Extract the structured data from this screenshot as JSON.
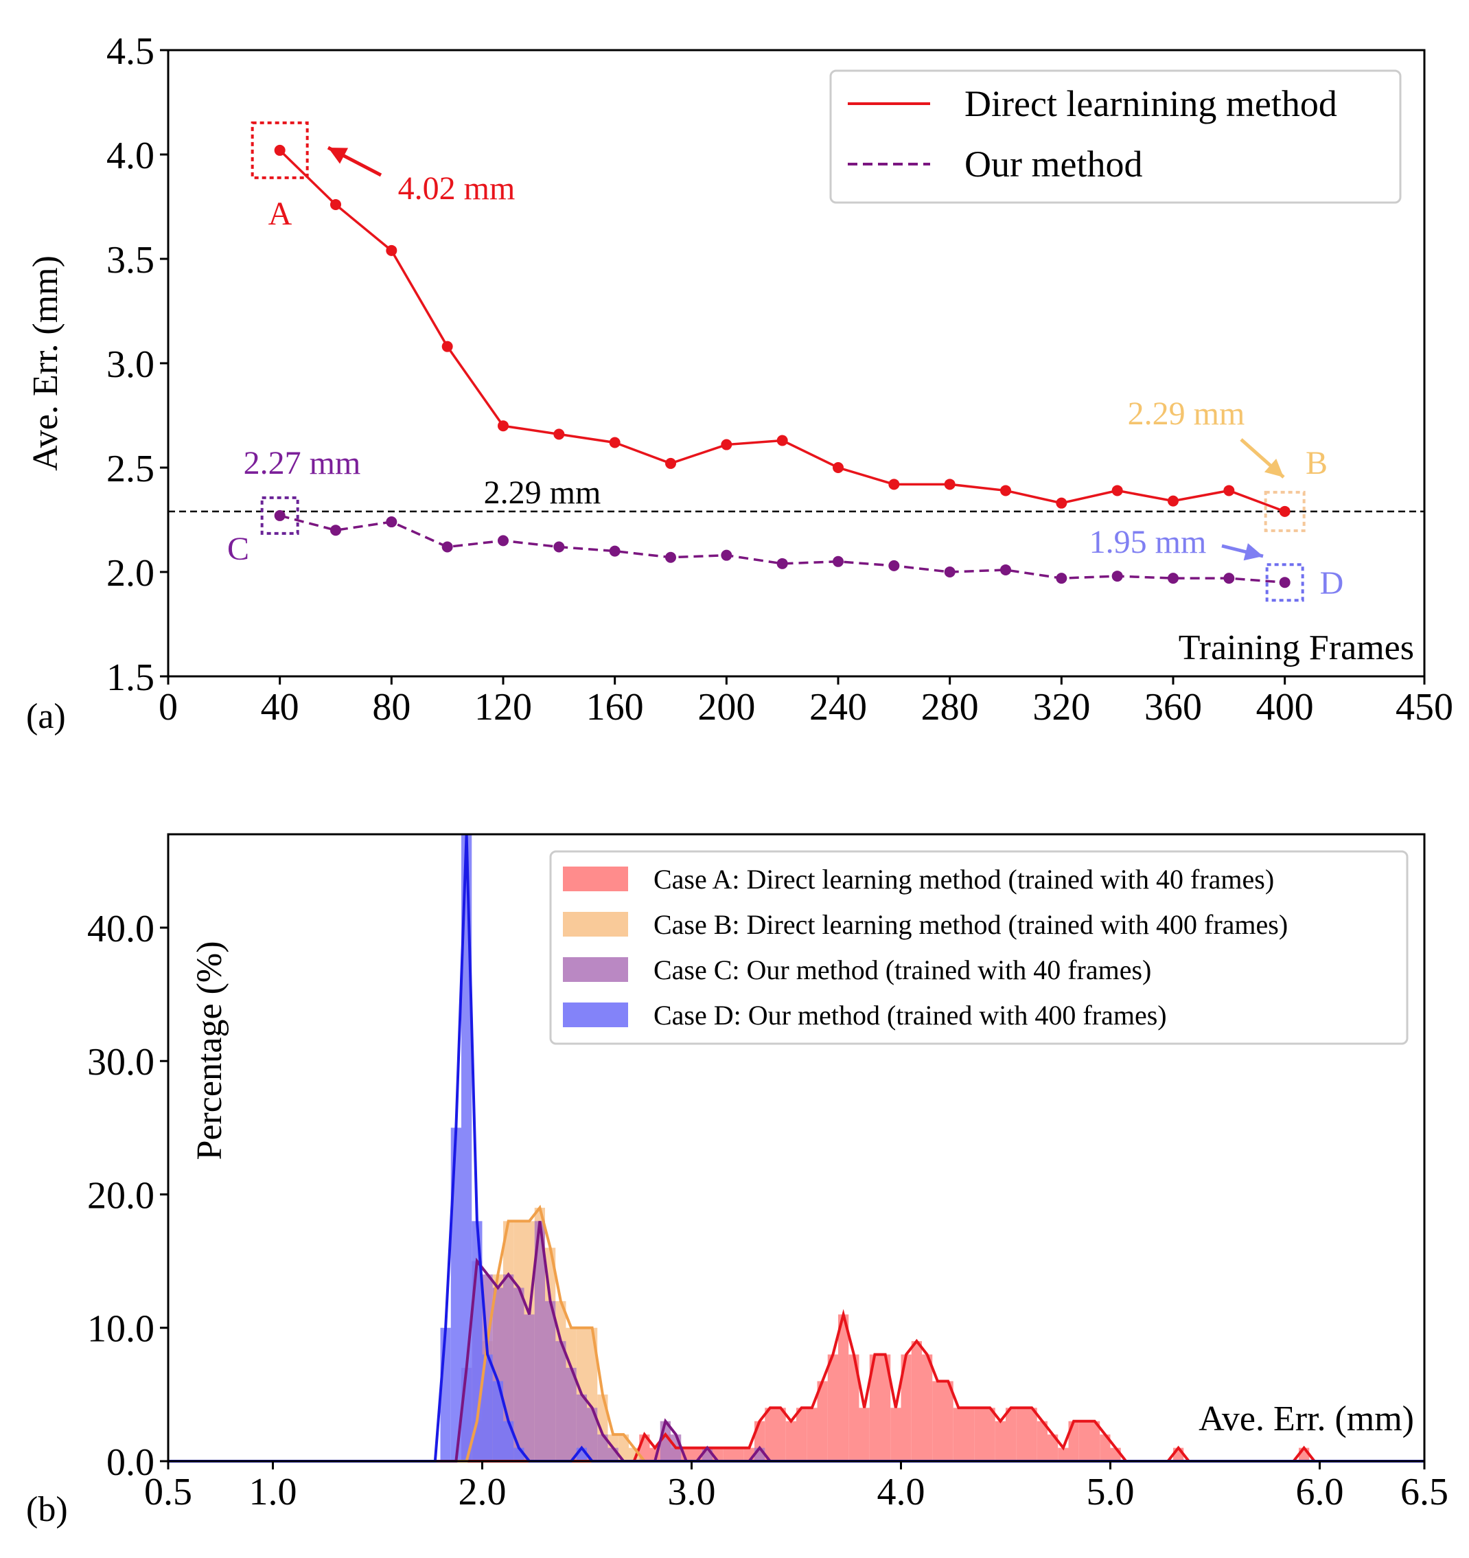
{
  "chart_data": [
    {
      "panel": "(a)",
      "type": "line",
      "title": "",
      "xlabel": "Training Frames",
      "ylabel": "Ave. Err. (mm)",
      "xlim": [
        0,
        450
      ],
      "ylim": [
        1.5,
        4.5
      ],
      "xticks": [
        "0",
        "40",
        "80",
        "120",
        "160",
        "200",
        "240",
        "280",
        "320",
        "360",
        "400",
        "450"
      ],
      "yticks": [
        "1.5",
        "2.0",
        "2.5",
        "3.0",
        "3.5",
        "4.0",
        "4.5"
      ],
      "grid": false,
      "legend_position": "top-right",
      "x": [
        40,
        60,
        80,
        100,
        120,
        140,
        160,
        180,
        200,
        220,
        240,
        260,
        280,
        300,
        320,
        340,
        360,
        380,
        400
      ],
      "series": [
        {
          "name": "Direct learnining method",
          "color": "#e8141b",
          "style": "solid",
          "values": [
            4.02,
            3.76,
            3.54,
            3.08,
            2.7,
            2.66,
            2.62,
            2.52,
            2.61,
            2.63,
            2.5,
            2.42,
            2.42,
            2.39,
            2.33,
            2.39,
            2.34,
            2.39,
            2.29
          ]
        },
        {
          "name": "Our method",
          "color": "#7b1680",
          "style": "dashed",
          "values": [
            2.27,
            2.2,
            2.24,
            2.12,
            2.15,
            2.12,
            2.1,
            2.07,
            2.08,
            2.04,
            2.05,
            2.03,
            2.0,
            2.01,
            1.97,
            1.98,
            1.97,
            1.97,
            1.95
          ]
        }
      ],
      "reference_line": {
        "y": 2.29,
        "label": "2.29 mm",
        "color": "#000000"
      },
      "annotations": [
        {
          "letter": "A",
          "x": 40,
          "y": 4.02,
          "value_label": "4.02 mm",
          "color": "#e8141b",
          "box_color": "#e8141b",
          "arrow": true
        },
        {
          "letter": "B",
          "x": 400,
          "y": 2.29,
          "value_label": "2.29 mm",
          "color": "#f5c46e",
          "box_color": "#f5c89a",
          "arrow": true
        },
        {
          "letter": "C",
          "x": 40,
          "y": 2.27,
          "value_label": "2.27 mm",
          "color": "#7b1f99",
          "box_color": "#6a2396",
          "arrow": false
        },
        {
          "letter": "D",
          "x": 400,
          "y": 1.95,
          "value_label": "1.95 mm",
          "color": "#7f7ff2",
          "box_color": "#6f6fef",
          "arrow": true
        }
      ]
    },
    {
      "panel": "(b)",
      "type": "histogram",
      "title": "",
      "xlabel": "Ave. Err. (mm)",
      "ylabel": "Percentage (%)",
      "xlim": [
        0.5,
        6.5
      ],
      "ylim": [
        0,
        47
      ],
      "xticks": [
        "0.5",
        "1.0",
        "2.0",
        "3.0",
        "4.0",
        "5.0",
        "6.0",
        "6.5"
      ],
      "yticks": [
        "0.0",
        "10.0",
        "20.0",
        "30.0",
        "40.0"
      ],
      "grid": false,
      "legend_position": "top-right",
      "bin_width": 0.05,
      "series": [
        {
          "name": "Case A: Direct learning method (trained with 40 frames)",
          "color": "#ff7f7f",
          "line_color": "#e8141b",
          "bins": [
            [
              2.75,
              2.8,
              2
            ],
            [
              2.8,
              2.85,
              1
            ],
            [
              2.85,
              2.9,
              2
            ],
            [
              2.9,
              2.95,
              1
            ],
            [
              2.95,
              3.0,
              1
            ],
            [
              3.0,
              3.05,
              1
            ],
            [
              3.05,
              3.1,
              1
            ],
            [
              3.1,
              3.15,
              1
            ],
            [
              3.15,
              3.2,
              1
            ],
            [
              3.2,
              3.25,
              1
            ],
            [
              3.25,
              3.3,
              1
            ],
            [
              3.3,
              3.35,
              3
            ],
            [
              3.35,
              3.4,
              4
            ],
            [
              3.4,
              3.45,
              4
            ],
            [
              3.45,
              3.5,
              3
            ],
            [
              3.5,
              3.55,
              4
            ],
            [
              3.55,
              3.6,
              4
            ],
            [
              3.6,
              3.65,
              6
            ],
            [
              3.65,
              3.7,
              8
            ],
            [
              3.7,
              3.75,
              11
            ],
            [
              3.75,
              3.8,
              8
            ],
            [
              3.8,
              3.85,
              4
            ],
            [
              3.85,
              3.9,
              8
            ],
            [
              3.9,
              3.95,
              8
            ],
            [
              3.95,
              4.0,
              4
            ],
            [
              4.0,
              4.05,
              8
            ],
            [
              4.05,
              4.1,
              9
            ],
            [
              4.1,
              4.15,
              8
            ],
            [
              4.15,
              4.2,
              6
            ],
            [
              4.2,
              4.25,
              6
            ],
            [
              4.25,
              4.3,
              4
            ],
            [
              4.3,
              4.35,
              4
            ],
            [
              4.35,
              4.4,
              4
            ],
            [
              4.4,
              4.45,
              4
            ],
            [
              4.45,
              4.5,
              3
            ],
            [
              4.5,
              4.55,
              4
            ],
            [
              4.55,
              4.6,
              4
            ],
            [
              4.6,
              4.65,
              4
            ],
            [
              4.65,
              4.7,
              3
            ],
            [
              4.7,
              4.75,
              2
            ],
            [
              4.75,
              4.8,
              1
            ],
            [
              4.8,
              4.85,
              3
            ],
            [
              4.85,
              4.9,
              3
            ],
            [
              4.9,
              4.95,
              3
            ],
            [
              4.95,
              5.0,
              2
            ],
            [
              5.0,
              5.05,
              1
            ],
            [
              5.3,
              5.35,
              1
            ],
            [
              5.9,
              5.95,
              1
            ]
          ]
        },
        {
          "name": "Case B: Direct learning method (trained with 400 frames)",
          "color": "#f8c48e",
          "line_color": "#f0a04a",
          "bins": [
            [
              1.95,
              2.0,
              3
            ],
            [
              2.0,
              2.05,
              9
            ],
            [
              2.05,
              2.1,
              14
            ],
            [
              2.1,
              2.15,
              18
            ],
            [
              2.15,
              2.2,
              18
            ],
            [
              2.2,
              2.25,
              18
            ],
            [
              2.25,
              2.3,
              19
            ],
            [
              2.3,
              2.35,
              16
            ],
            [
              2.35,
              2.4,
              12
            ],
            [
              2.4,
              2.45,
              10
            ],
            [
              2.45,
              2.5,
              10
            ],
            [
              2.5,
              2.55,
              10
            ],
            [
              2.55,
              2.6,
              5
            ],
            [
              2.6,
              2.65,
              2
            ],
            [
              2.65,
              2.7,
              2
            ],
            [
              2.7,
              2.75,
              1
            ]
          ]
        },
        {
          "name": "Case C: Our method (trained with 40 frames)",
          "color": "#b27bbd",
          "line_color": "#7b1680",
          "bins": [
            [
              1.9,
              1.95,
              7
            ],
            [
              1.95,
              2.0,
              15
            ],
            [
              2.0,
              2.05,
              14
            ],
            [
              2.05,
              2.1,
              13
            ],
            [
              2.1,
              2.15,
              14
            ],
            [
              2.15,
              2.2,
              13
            ],
            [
              2.2,
              2.25,
              11
            ],
            [
              2.25,
              2.3,
              18
            ],
            [
              2.3,
              2.35,
              12
            ],
            [
              2.35,
              2.4,
              9
            ],
            [
              2.4,
              2.45,
              7
            ],
            [
              2.45,
              2.5,
              5
            ],
            [
              2.5,
              2.55,
              4
            ],
            [
              2.55,
              2.6,
              2
            ],
            [
              2.6,
              2.65,
              1
            ],
            [
              2.85,
              2.9,
              3
            ],
            [
              2.9,
              2.95,
              2
            ],
            [
              3.05,
              3.1,
              1
            ],
            [
              3.3,
              3.35,
              1
            ]
          ]
        },
        {
          "name": "Case D: Our method (trained with 400 frames)",
          "color": "#7676f8",
          "line_color": "#1a1ae6",
          "bins": [
            [
              1.8,
              1.85,
              10
            ],
            [
              1.85,
              1.9,
              25
            ],
            [
              1.9,
              1.95,
              47
            ],
            [
              1.95,
              2.0,
              18
            ],
            [
              2.0,
              2.05,
              8
            ],
            [
              2.05,
              2.1,
              6
            ],
            [
              2.1,
              2.15,
              3
            ],
            [
              2.15,
              2.2,
              1
            ],
            [
              2.45,
              2.5,
              1
            ]
          ]
        }
      ]
    }
  ],
  "labels": {
    "panel_a": "(a)",
    "panel_b": "(b)"
  }
}
